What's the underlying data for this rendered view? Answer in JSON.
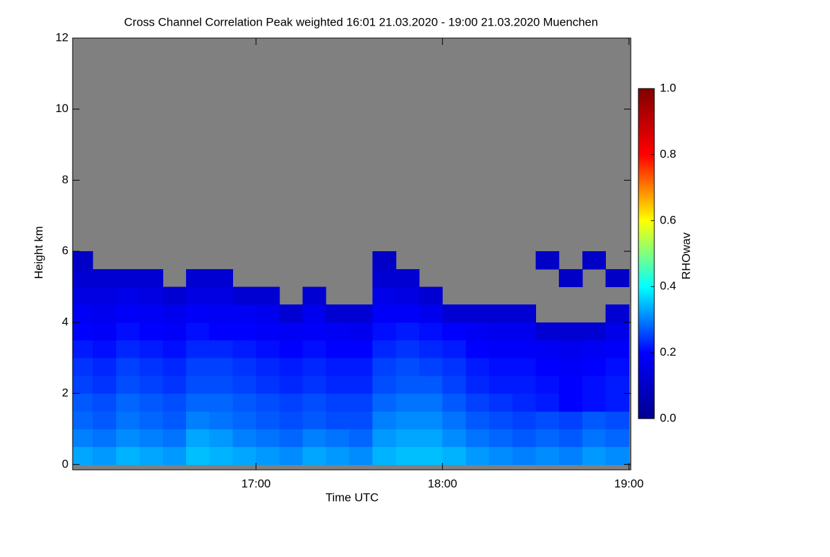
{
  "chart_data": {
    "type": "heatmap",
    "title": "Cross Channel Correlation Peak weighted   16:01 21.03.2020 - 19:00 21.03.2020 Muenchen",
    "x_label": "Time UTC",
    "y_label": "Height km",
    "colorbar_label": "RHOwav",
    "xlim": [
      16.0167,
      19.01
    ],
    "ylim": [
      -0.15,
      12
    ],
    "xticks": [
      {
        "value": 17,
        "label": "17:00"
      },
      {
        "value": 18,
        "label": "18:00"
      },
      {
        "value": 19,
        "label": "19:00"
      }
    ],
    "yticks": [
      0,
      2,
      4,
      6,
      8,
      10,
      12
    ],
    "clim": [
      0,
      1
    ],
    "cticks": [
      {
        "value": 0,
        "label": "0.0"
      },
      {
        "value": 0.2,
        "label": "0.2"
      },
      {
        "value": 0.4,
        "label": "0.4"
      },
      {
        "value": 0.6,
        "label": "0.6"
      },
      {
        "value": 0.8,
        "label": "0.8"
      },
      {
        "value": 1,
        "label": "1.0"
      }
    ],
    "colormap": [
      "#00008f",
      "#0000ff",
      "#00ffff",
      "#ffff00",
      "#ff0000",
      "#800000"
    ],
    "missing_color": "#808080",
    "x": [
      16.0625,
      16.1875,
      16.3125,
      16.4375,
      16.5625,
      16.6875,
      16.8125,
      16.9375,
      17.0625,
      17.1875,
      17.3125,
      17.4375,
      17.5625,
      17.6875,
      17.8125,
      17.9375,
      18.0625,
      18.1875,
      18.3125,
      18.4375,
      18.5625,
      18.6875,
      18.8125,
      18.9375
    ],
    "y": [
      0.25,
      0.75,
      1.25,
      1.75,
      2.25,
      2.75,
      3.25,
      3.75,
      4.25,
      4.75,
      5.25,
      5.75,
      6.25,
      6.75,
      7.25
    ],
    "z": [
      [
        0.33,
        0.32,
        0.34,
        0.33,
        0.32,
        0.35,
        0.34,
        0.33,
        0.32,
        0.31,
        0.33,
        0.32,
        0.31,
        0.34,
        0.35,
        0.35,
        0.34,
        0.32,
        0.31,
        0.3,
        0.31,
        0.3,
        0.32,
        0.31
      ],
      [
        0.3,
        0.29,
        0.31,
        0.3,
        0.29,
        0.33,
        0.32,
        0.3,
        0.29,
        0.28,
        0.3,
        0.29,
        0.28,
        0.32,
        0.33,
        0.33,
        0.31,
        0.29,
        0.28,
        0.27,
        0.28,
        0.27,
        0.29,
        0.28
      ],
      [
        0.28,
        0.27,
        0.29,
        0.28,
        0.27,
        0.3,
        0.29,
        0.28,
        0.27,
        0.26,
        0.27,
        0.26,
        0.26,
        0.3,
        0.31,
        0.31,
        0.29,
        0.27,
        0.26,
        0.25,
        0.26,
        0.25,
        0.27,
        0.26
      ],
      [
        0.27,
        0.26,
        0.28,
        0.27,
        0.26,
        0.28,
        0.28,
        0.27,
        0.26,
        0.25,
        0.26,
        0.25,
        0.25,
        0.28,
        0.29,
        0.29,
        0.27,
        0.25,
        0.24,
        0.23,
        0.22,
        0.2,
        0.21,
        0.22
      ],
      [
        0.25,
        0.24,
        0.26,
        0.25,
        0.24,
        0.26,
        0.26,
        0.25,
        0.24,
        0.23,
        0.24,
        0.23,
        0.23,
        0.26,
        0.27,
        0.27,
        0.25,
        0.23,
        0.22,
        0.22,
        0.21,
        0.2,
        0.21,
        0.22
      ],
      [
        0.24,
        0.23,
        0.25,
        0.24,
        0.23,
        0.25,
        0.25,
        0.24,
        0.23,
        0.22,
        0.23,
        0.22,
        0.22,
        0.25,
        0.26,
        0.25,
        0.24,
        0.22,
        0.21,
        0.21,
        0.2,
        0.19,
        0.2,
        0.21
      ],
      [
        0.22,
        0.21,
        0.23,
        0.22,
        0.21,
        0.23,
        0.23,
        0.22,
        0.21,
        0.2,
        0.21,
        0.2,
        0.2,
        0.23,
        0.24,
        0.23,
        0.22,
        0.2,
        0.19,
        0.19,
        0.18,
        0.17,
        0.18,
        0.19
      ],
      [
        0.2,
        0.19,
        0.21,
        0.2,
        0.19,
        0.21,
        0.2,
        0.2,
        0.19,
        0.18,
        0.19,
        0.18,
        0.17,
        0.21,
        0.22,
        0.21,
        0.2,
        0.18,
        0.17,
        0.17,
        0.12,
        0.12,
        0.12,
        0.16
      ],
      [
        0.18,
        0.17,
        0.19,
        0.18,
        0.17,
        0.19,
        0.18,
        0.18,
        0.17,
        0.12,
        0.17,
        0.12,
        0.12,
        0.19,
        0.19,
        0.17,
        0.12,
        0.12,
        0.12,
        0.12,
        null,
        null,
        null,
        0.12
      ],
      [
        0.15,
        0.15,
        0.16,
        0.15,
        0.12,
        0.15,
        0.15,
        0.12,
        0.12,
        null,
        0.12,
        null,
        null,
        0.16,
        0.15,
        0.12,
        null,
        null,
        null,
        null,
        null,
        null,
        null,
        null
      ],
      [
        0.12,
        0.12,
        0.12,
        0.12,
        null,
        0.12,
        0.12,
        null,
        null,
        null,
        null,
        null,
        null,
        0.12,
        0.12,
        null,
        null,
        null,
        null,
        null,
        null,
        0.1,
        null,
        0.1
      ],
      [
        0.1,
        null,
        null,
        null,
        null,
        null,
        null,
        null,
        null,
        null,
        null,
        null,
        null,
        0.1,
        null,
        null,
        null,
        null,
        null,
        null,
        0.1,
        null,
        0.1,
        null
      ],
      [
        null,
        null,
        null,
        null,
        null,
        null,
        null,
        null,
        null,
        null,
        null,
        null,
        null,
        null,
        null,
        null,
        null,
        null,
        null,
        null,
        null,
        null,
        null,
        null
      ],
      [
        null,
        null,
        null,
        null,
        null,
        null,
        null,
        null,
        null,
        null,
        null,
        null,
        null,
        null,
        null,
        null,
        null,
        null,
        null,
        null,
        null,
        null,
        null,
        null
      ],
      [
        null,
        null,
        null,
        null,
        null,
        null,
        null,
        null,
        null,
        null,
        null,
        null,
        null,
        null,
        null,
        null,
        null,
        null,
        null,
        null,
        null,
        null,
        null,
        null
      ]
    ]
  }
}
